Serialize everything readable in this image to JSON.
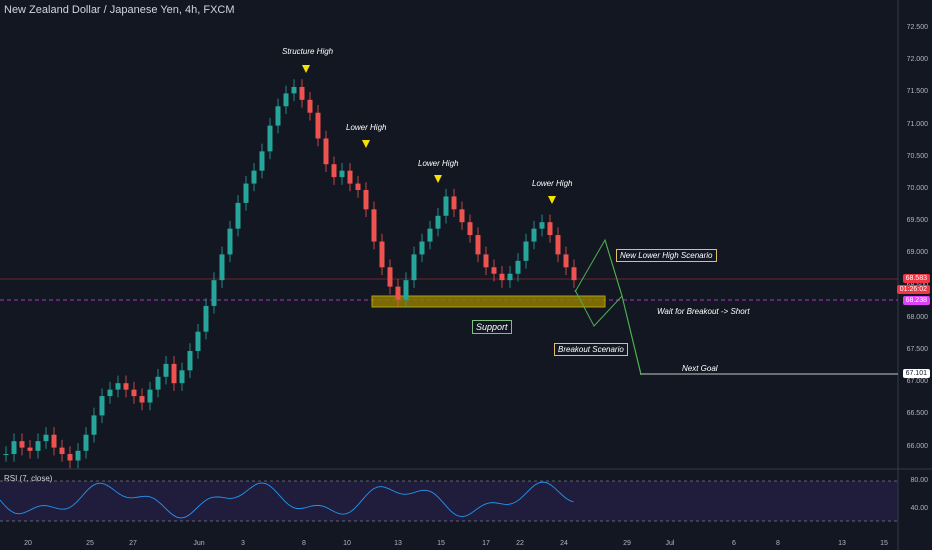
{
  "header": {
    "title": "New Zealand Dollar / Japanese Yen, 4h, FXCM"
  },
  "annotations": {
    "structure_high": "Structure High",
    "lower_high_1": "Lower High",
    "lower_high_2": "Lower High",
    "lower_high_3": "Lower High",
    "new_lower_high": "New Lower High Scenario",
    "wait_breakout": "Wait for Breakout -> Short",
    "support": "Support",
    "breakout_scenario": "Breakout Scenario",
    "next_goal": "Next Goal"
  },
  "price_axis": {
    "ticks": [
      "72.500",
      "72.000",
      "71.500",
      "71.000",
      "70.500",
      "70.000",
      "69.500",
      "69.000",
      "68.500",
      "68.000",
      "67.500",
      "67.000",
      "66.500",
      "66.000"
    ],
    "tags": {
      "current_price": "68.583",
      "countdown": "01:26:02",
      "support_price": "68.238",
      "goal_price": "67.101"
    },
    "colors": {
      "current": "#f23645",
      "support": "#e040fb",
      "goal": "#ffffff"
    }
  },
  "rsi": {
    "label": "RSI (7, close)",
    "ticks": [
      "80.00",
      "40.00"
    ]
  },
  "time_axis": {
    "ticks": [
      "20",
      "25",
      "27",
      "Jun",
      "3",
      "8",
      "10",
      "13",
      "15",
      "17",
      "22",
      "24",
      "29",
      "Jul",
      "6",
      "8",
      "13",
      "15"
    ]
  },
  "colors": {
    "up": "#26a69a",
    "down": "#ef5350",
    "accent": "#f5e200",
    "support_zone": "#b8a200",
    "rsi_line": "#2196f3"
  },
  "chart_data": {
    "type": "candlestick",
    "symbol": "NZDJPY",
    "ylim": [
      65.8,
      72.7
    ],
    "support_zone": [
      68.1,
      68.2
    ],
    "series": [
      {
        "name": "close",
        "values": [
          65.9,
          66.1,
          66.0,
          65.95,
          66.1,
          66.2,
          66.0,
          65.9,
          65.8,
          65.95,
          66.2,
          66.5,
          66.8,
          66.9,
          67.0,
          66.9,
          66.8,
          66.7,
          66.9,
          67.1,
          67.3,
          67.0,
          67.2,
          67.5,
          67.8,
          68.2,
          68.6,
          69.0,
          69.4,
          69.8,
          70.1,
          70.3,
          70.6,
          71.0,
          71.3,
          71.5,
          71.6,
          71.4,
          71.2,
          70.8,
          70.4,
          70.2,
          70.3,
          70.1,
          70.0,
          69.7,
          69.2,
          68.8,
          68.5,
          68.3,
          68.6,
          69.0,
          69.2,
          69.4,
          69.6,
          69.9,
          69.7,
          69.5,
          69.3,
          69.0,
          68.8,
          68.7,
          68.6,
          68.7,
          68.9,
          69.2,
          69.4,
          69.5,
          69.3,
          69.0,
          68.8,
          68.6
        ]
      }
    ]
  }
}
